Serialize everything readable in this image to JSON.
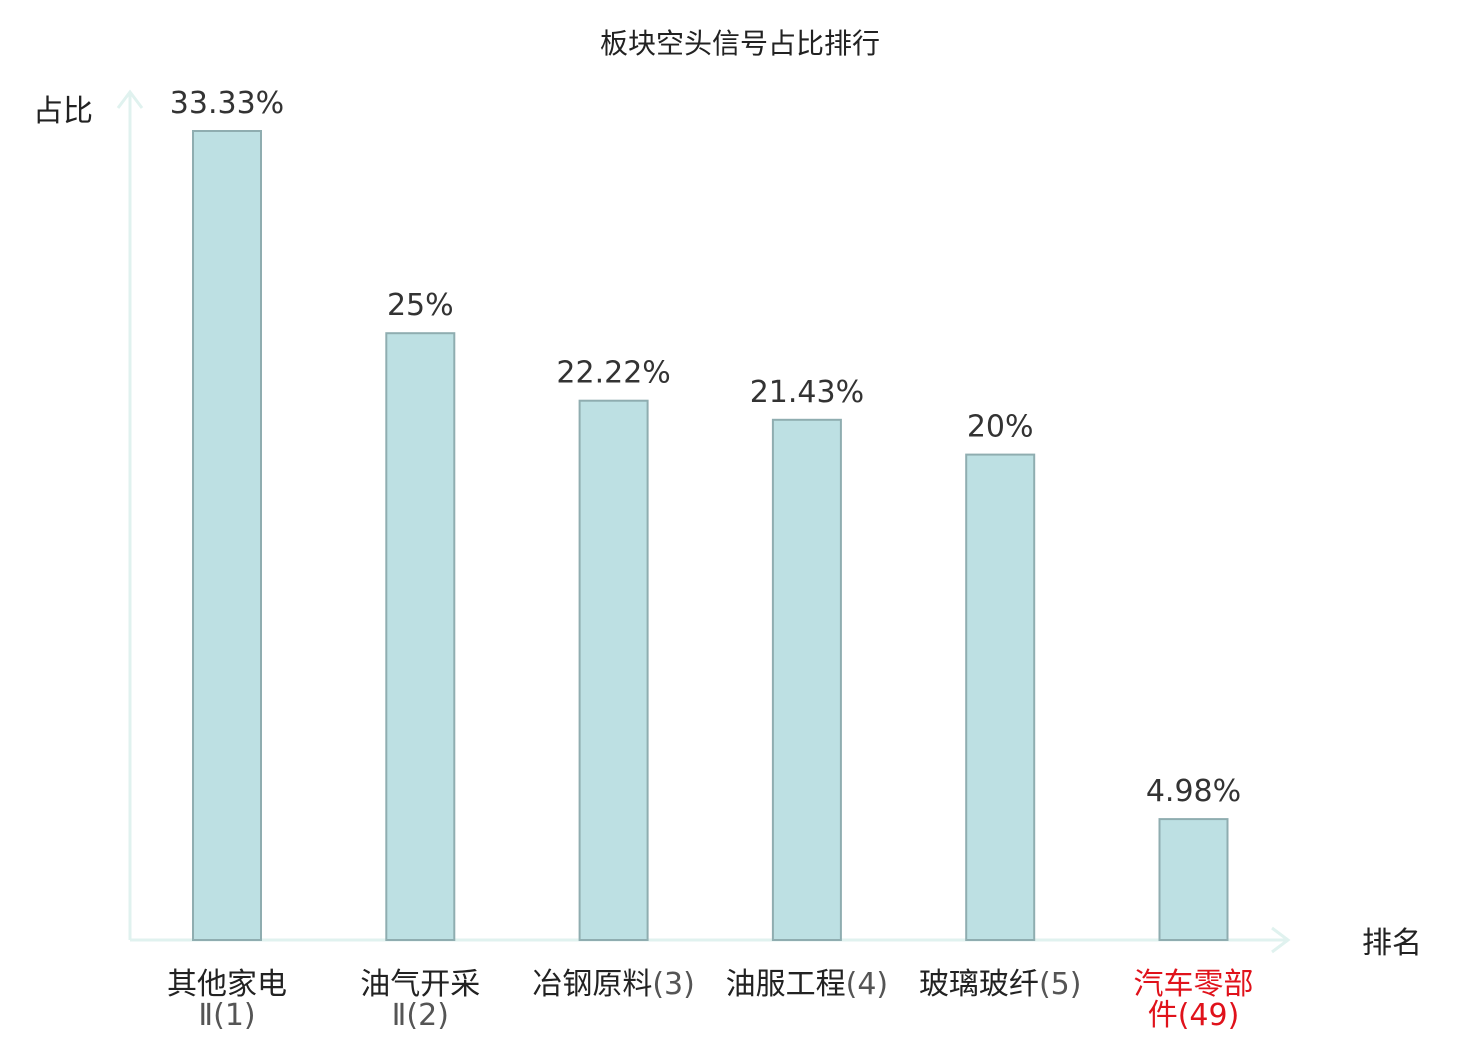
{
  "chart_data": {
    "type": "bar",
    "title": "板块空头信号占比排行",
    "ylabel": "占比",
    "xlabel": "排名",
    "categories": [
      {
        "name": "其他家电",
        "rank": "Ⅱ(1)",
        "highlight": false
      },
      {
        "name": "油气开采",
        "rank": "Ⅱ(2)",
        "highlight": false
      },
      {
        "name": "冶钢原料",
        "rank": "(3)",
        "highlight": false
      },
      {
        "name": "油服工程",
        "rank": "(4)",
        "highlight": false
      },
      {
        "name": "玻璃玻纤",
        "rank": "(5)",
        "highlight": false
      },
      {
        "name": "汽车零部",
        "rank": "件(49)",
        "highlight": true
      }
    ],
    "values": [
      33.33,
      25,
      22.22,
      21.43,
      20,
      4.98
    ],
    "value_labels": [
      "33.33%",
      "25%",
      "22.22%",
      "21.43%",
      "20%",
      "4.98%"
    ],
    "ylim": [
      0,
      33.33
    ],
    "grid": false,
    "legend": "none",
    "colors": {
      "bar_fill": "#bde0e3",
      "bar_stroke": "#8fadb0",
      "axis": "#e0f2ef",
      "text": "#222222",
      "value_text": "#333333",
      "rank_text": "#555555",
      "highlight": "#e0121b"
    }
  }
}
